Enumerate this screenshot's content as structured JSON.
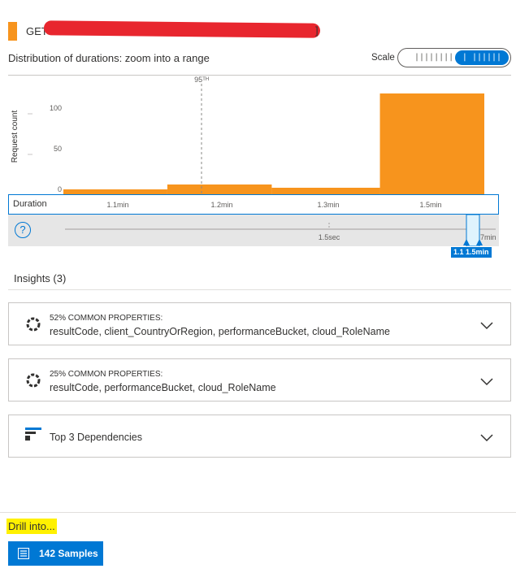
{
  "header": {
    "method": "GET",
    "tail": "]"
  },
  "subtitle": "Distribution of durations: zoom into a range",
  "scale": {
    "label": "Scale",
    "option_linear": "||||||||",
    "option_log": "| ||||||"
  },
  "chart_data": {
    "type": "bar",
    "ylabel": "Request count",
    "xlabel": "Duration",
    "yticks": [
      0,
      50,
      100
    ],
    "ylim": [
      0,
      130
    ],
    "xticks": [
      "1.1min",
      "1.2min",
      "1.3min",
      "1.5min"
    ],
    "percentile_marker": "95ᵀᴴ",
    "bars": [
      {
        "range": "1.0min–1.2min",
        "value": 7
      },
      {
        "range": "1.2min–1.3min",
        "value": 13
      },
      {
        "range": "1.3min–1.4min",
        "value": 9
      },
      {
        "range": "1.4min–1.6min",
        "value": 125
      }
    ],
    "bar_color": "#f7941d"
  },
  "brush": {
    "tick_mid": "1.5sec",
    "tick_right": "1.7min",
    "selection_label": "1.1 1.5min"
  },
  "insights": {
    "title": "Insights (3)",
    "cards": [
      {
        "small": "52% COMMON PROPERTIES:",
        "main": "resultCode, client_CountryOrRegion, performanceBucket, cloud_RoleName",
        "icon": "donut-icon"
      },
      {
        "small": "25% COMMON PROPERTIES:",
        "main": "resultCode, performanceBucket, cloud_RoleName",
        "icon": "donut-icon"
      },
      {
        "small": "",
        "main": "Top 3 Dependencies",
        "icon": "dependencies-icon"
      }
    ]
  },
  "drill": {
    "label": "Drill into...",
    "samples_button": "142 Samples"
  },
  "colors": {
    "accent": "#0078d4",
    "bar": "#f7941d",
    "highlight": "#fff100"
  }
}
